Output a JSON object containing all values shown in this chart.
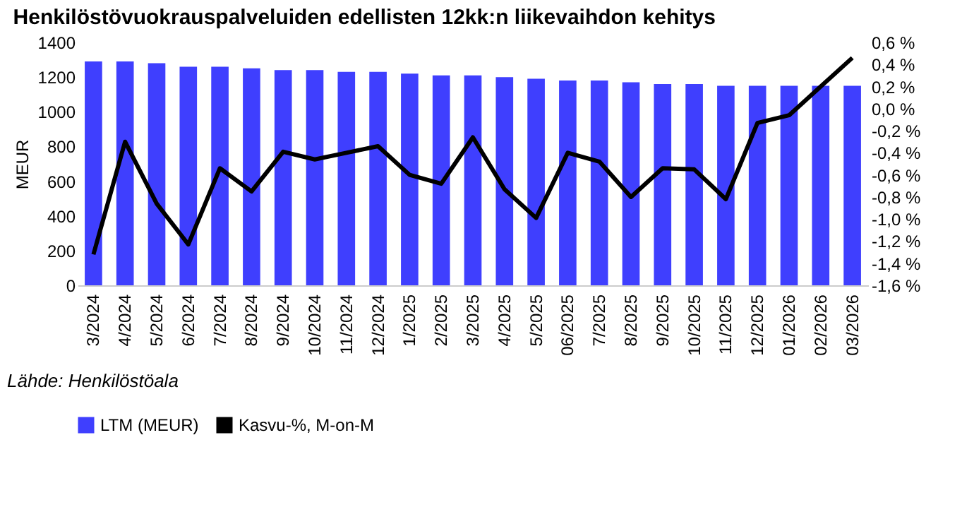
{
  "chart_data": {
    "type": "bar",
    "title": "Henkilöstövuokrauspalveluiden edellisten 12kk:n liikevaihdon kehitys",
    "ylabel": "MEUR",
    "categories": [
      "3/2024",
      "4/2024",
      "5/2024",
      "6/2024",
      "7/2024",
      "8/2024",
      "9/2024",
      "10/2024",
      "11/2024",
      "12/2024",
      "1/2025",
      "2/2025",
      "3/2025",
      "4/2025",
      "5/2025",
      "06/2025",
      "7/2025",
      "8/2025",
      "9/2025",
      "10/2025",
      "11/2025",
      "12/2025",
      "01/2026",
      "02/2026",
      "03/2026"
    ],
    "series": [
      {
        "name": "LTM (MEUR)",
        "color": "#3f3ffe",
        "values": [
          1290,
          1290,
          1280,
          1260,
          1260,
          1250,
          1240,
          1240,
          1230,
          1230,
          1220,
          1210,
          1210,
          1200,
          1190,
          1180,
          1180,
          1170,
          1160,
          1160,
          1150,
          1150,
          1150,
          1150,
          1150
        ]
      },
      {
        "name": "Kasvu-%, M-on-M",
        "color": "#000000",
        "type": "line",
        "axis": "y2",
        "values": [
          -1.32,
          -0.3,
          -0.86,
          -1.23,
          -0.54,
          -0.75,
          -0.39,
          -0.46,
          -0.4,
          -0.34,
          -0.6,
          -0.68,
          -0.26,
          -0.73,
          -0.99,
          -0.4,
          -0.48,
          -0.8,
          -0.54,
          -0.55,
          -0.82,
          -0.13,
          -0.06,
          0.2,
          0.46
        ]
      }
    ],
    "ylim": [
      0,
      1400
    ],
    "yticks": [
      0,
      200,
      400,
      600,
      800,
      1000,
      1200,
      1400
    ],
    "y2lim": [
      -1.6,
      0.6
    ],
    "y2ticks": [
      {
        "value": -1.6,
        "label": "-1,6 %"
      },
      {
        "value": -1.4,
        "label": "-1,4 %"
      },
      {
        "value": -1.2,
        "label": "-1,2 %"
      },
      {
        "value": -1.0,
        "label": "-1,0 %"
      },
      {
        "value": -0.8,
        "label": "-0,8 %"
      },
      {
        "value": -0.6,
        "label": "-0,6 %"
      },
      {
        "value": -0.4,
        "label": "-0,4 %"
      },
      {
        "value": -0.2,
        "label": "-0,2 %"
      },
      {
        "value": 0.0,
        "label": "0,0 %"
      },
      {
        "value": 0.2,
        "label": "0,2 %"
      },
      {
        "value": 0.4,
        "label": "0,4 %"
      },
      {
        "value": 0.6,
        "label": "0,6 %"
      }
    ],
    "legend": "bottom",
    "grid": false,
    "annotations": [
      "Lähde: Henkilöstöala"
    ]
  }
}
